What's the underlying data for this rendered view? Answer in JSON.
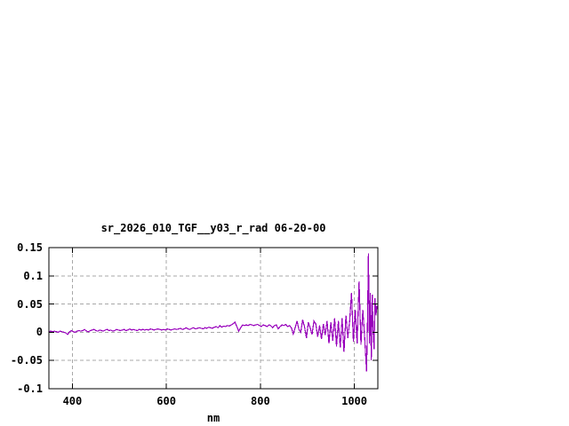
{
  "window": {
    "background": "#ffffff"
  },
  "chart_data": {
    "type": "line",
    "title": "sr_2026_010_TGF__y03_r_rad 06-20-00",
    "xlabel": "nm",
    "ylabel": "",
    "xlim": [
      350,
      1050
    ],
    "ylim": [
      -0.1,
      0.15
    ],
    "xticks": [
      400,
      600,
      800,
      1000
    ],
    "xtick_labels": [
      "400",
      "600",
      "800",
      "1000"
    ],
    "yticks": [
      -0.1,
      -0.05,
      0,
      0.05,
      0.1,
      0.15
    ],
    "ytick_labels": [
      "-0.1",
      "-0.05",
      "0",
      "0.05",
      "0.1",
      "0.15"
    ],
    "grid": true,
    "legend_position": "none",
    "line_color": "#9902bc",
    "grid_color": "#a8a8a8",
    "axis_color": "#000000",
    "series": [
      {
        "points": [
          [
            350,
            0.001
          ],
          [
            354,
            0.002
          ],
          [
            358,
            0.001
          ],
          [
            362,
            0.002
          ],
          [
            366,
            0.001
          ],
          [
            370,
            0.0
          ],
          [
            374,
            0.002
          ],
          [
            378,
            0.001
          ],
          [
            382,
            0.0
          ],
          [
            386,
            -0.001
          ],
          [
            390,
            -0.004
          ],
          [
            394,
            0.001
          ],
          [
            398,
            0.003
          ],
          [
            402,
            0.001
          ],
          [
            406,
            0.0
          ],
          [
            410,
            0.002
          ],
          [
            414,
            0.003
          ],
          [
            418,
            0.002
          ],
          [
            422,
            0.003
          ],
          [
            426,
            0.005
          ],
          [
            430,
            0.002
          ],
          [
            434,
            0.001
          ],
          [
            438,
            0.003
          ],
          [
            442,
            0.004
          ],
          [
            446,
            0.005
          ],
          [
            450,
            0.003
          ],
          [
            454,
            0.002
          ],
          [
            458,
            0.004
          ],
          [
            462,
            0.003
          ],
          [
            466,
            0.002
          ],
          [
            470,
            0.004
          ],
          [
            474,
            0.005
          ],
          [
            478,
            0.003
          ],
          [
            482,
            0.004
          ],
          [
            486,
            0.002
          ],
          [
            490,
            0.003
          ],
          [
            494,
            0.005
          ],
          [
            498,
            0.004
          ],
          [
            502,
            0.003
          ],
          [
            506,
            0.004
          ],
          [
            510,
            0.005
          ],
          [
            514,
            0.003
          ],
          [
            518,
            0.004
          ],
          [
            522,
            0.006
          ],
          [
            526,
            0.004
          ],
          [
            530,
            0.005
          ],
          [
            534,
            0.004
          ],
          [
            538,
            0.003
          ],
          [
            542,
            0.005
          ],
          [
            546,
            0.004
          ],
          [
            550,
            0.005
          ],
          [
            554,
            0.004
          ],
          [
            558,
            0.005
          ],
          [
            562,
            0.004
          ],
          [
            566,
            0.006
          ],
          [
            570,
            0.005
          ],
          [
            574,
            0.004
          ],
          [
            578,
            0.005
          ],
          [
            582,
            0.006
          ],
          [
            586,
            0.005
          ],
          [
            590,
            0.004
          ],
          [
            594,
            0.005
          ],
          [
            598,
            0.004
          ],
          [
            602,
            0.006
          ],
          [
            606,
            0.005
          ],
          [
            610,
            0.004
          ],
          [
            614,
            0.005
          ],
          [
            618,
            0.006
          ],
          [
            622,
            0.005
          ],
          [
            626,
            0.006
          ],
          [
            630,
            0.007
          ],
          [
            634,
            0.005
          ],
          [
            638,
            0.006
          ],
          [
            642,
            0.008
          ],
          [
            646,
            0.006
          ],
          [
            650,
            0.005
          ],
          [
            654,
            0.007
          ],
          [
            658,
            0.008
          ],
          [
            662,
            0.006
          ],
          [
            666,
            0.007
          ],
          [
            670,
            0.008
          ],
          [
            674,
            0.007
          ],
          [
            678,
            0.006
          ],
          [
            682,
            0.008
          ],
          [
            686,
            0.007
          ],
          [
            690,
            0.009
          ],
          [
            694,
            0.008
          ],
          [
            698,
            0.007
          ],
          [
            702,
            0.009
          ],
          [
            706,
            0.01
          ],
          [
            710,
            0.008
          ],
          [
            714,
            0.012
          ],
          [
            718,
            0.009
          ],
          [
            722,
            0.011
          ],
          [
            726,
            0.01
          ],
          [
            730,
            0.012
          ],
          [
            734,
            0.011
          ],
          [
            738,
            0.013
          ],
          [
            742,
            0.015
          ],
          [
            746,
            0.018
          ],
          [
            750,
            0.01
          ],
          [
            754,
            0.002
          ],
          [
            758,
            0.008
          ],
          [
            762,
            0.013
          ],
          [
            766,
            0.012
          ],
          [
            770,
            0.013
          ],
          [
            774,
            0.012
          ],
          [
            778,
            0.014
          ],
          [
            782,
            0.013
          ],
          [
            786,
            0.012
          ],
          [
            790,
            0.013
          ],
          [
            794,
            0.014
          ],
          [
            798,
            0.012
          ],
          [
            802,
            0.01
          ],
          [
            806,
            0.013
          ],
          [
            810,
            0.012
          ],
          [
            814,
            0.01
          ],
          [
            818,
            0.013
          ],
          [
            822,
            0.012
          ],
          [
            826,
            0.008
          ],
          [
            830,
            0.012
          ],
          [
            834,
            0.013
          ],
          [
            838,
            0.006
          ],
          [
            842,
            0.01
          ],
          [
            846,
            0.013
          ],
          [
            850,
            0.012
          ],
          [
            854,
            0.014
          ],
          [
            858,
            0.01
          ],
          [
            862,
            0.012
          ],
          [
            866,
            0.008
          ],
          [
            870,
            -0.003
          ],
          [
            874,
            0.008
          ],
          [
            878,
            0.02
          ],
          [
            882,
            0.005
          ],
          [
            886,
            0.0
          ],
          [
            890,
            0.022
          ],
          [
            894,
            0.01
          ],
          [
            898,
            -0.01
          ],
          [
            902,
            0.018
          ],
          [
            906,
            0.008
          ],
          [
            910,
            -0.004
          ],
          [
            914,
            0.02
          ],
          [
            918,
            0.015
          ],
          [
            922,
            -0.008
          ],
          [
            926,
            0.012
          ],
          [
            930,
            -0.012
          ],
          [
            934,
            0.015
          ],
          [
            938,
            -0.005
          ],
          [
            942,
            0.02
          ],
          [
            946,
            -0.02
          ],
          [
            950,
            0.018
          ],
          [
            954,
            -0.015
          ],
          [
            958,
            0.025
          ],
          [
            962,
            -0.025
          ],
          [
            966,
            0.02
          ],
          [
            970,
            -0.027
          ],
          [
            974,
            0.025
          ],
          [
            978,
            -0.035
          ],
          [
            982,
            0.03
          ],
          [
            986,
            -0.01
          ],
          [
            990,
            0.02
          ],
          [
            994,
            0.07
          ],
          [
            998,
            -0.017
          ],
          [
            1002,
            0.04
          ],
          [
            1006,
            -0.02
          ],
          [
            1010,
            0.09
          ],
          [
            1014,
            -0.022
          ],
          [
            1018,
            0.04
          ],
          [
            1022,
            -0.01
          ],
          [
            1026,
            -0.069
          ],
          [
            1028,
            0.02
          ],
          [
            1030,
            0.14
          ],
          [
            1032,
            -0.02
          ],
          [
            1034,
            0.07
          ],
          [
            1036,
            -0.05
          ],
          [
            1038,
            0.067
          ],
          [
            1040,
            0.0
          ],
          [
            1042,
            -0.03
          ],
          [
            1044,
            0.06
          ],
          [
            1046,
            0.03
          ],
          [
            1048,
            0.047
          ],
          [
            1050,
            0.04
          ]
        ]
      }
    ]
  }
}
